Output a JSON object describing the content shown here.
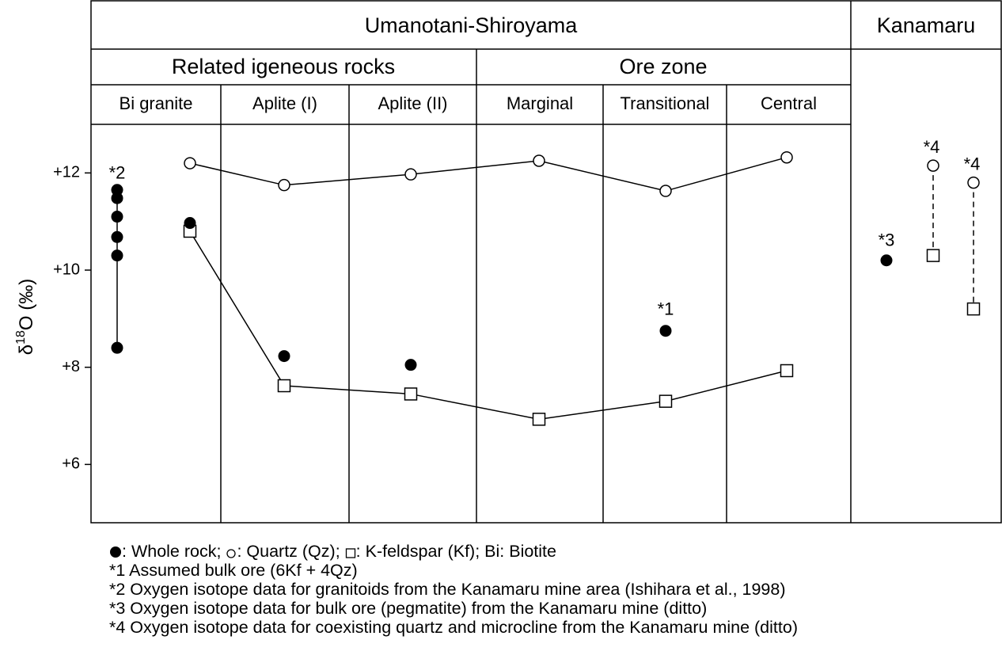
{
  "chart_data": {
    "type": "scatter",
    "ylabel": {
      "prefix": "δ",
      "superscript": "18",
      "suffix": "O (‰)"
    },
    "header": {
      "top": [
        "Umanotani-Shiroyama",
        "Kanamaru"
      ],
      "groups": [
        "Related igeneous rocks",
        "Ore zone"
      ]
    },
    "categories": [
      "Bi granite",
      "Aplite (I)",
      "Aplite (II)",
      "Marginal",
      "Transitional",
      "Central"
    ],
    "ylim": [
      4.8,
      13.0
    ],
    "yticks": [
      {
        "value": 6,
        "label": "+6"
      },
      {
        "value": 8,
        "label": "+8"
      },
      {
        "value": 10,
        "label": "+10"
      },
      {
        "value": 12,
        "label": "+12"
      }
    ],
    "series": [
      {
        "name": "Quartz (Qz)",
        "marker": "open-circle",
        "values": [
          12.2,
          11.75,
          11.97,
          12.25,
          11.63,
          12.32
        ]
      },
      {
        "name": "K-feldspar (Kf)",
        "marker": "open-square",
        "values": [
          10.8,
          7.62,
          7.45,
          6.93,
          7.3,
          7.93
        ]
      },
      {
        "name": "Whole rock",
        "marker": "filled-circle",
        "values": [
          10.97,
          8.23,
          8.05,
          null,
          8.75,
          null
        ]
      }
    ],
    "bi_granite_samples": {
      "values": [
        11.65,
        11.48,
        11.1,
        10.68,
        10.3,
        8.4
      ],
      "note": "*2"
    },
    "whole_rock_note": "*1",
    "kanamaru": {
      "whole_rock": {
        "value": 10.2,
        "note": "*3"
      },
      "pairs": [
        {
          "quartz": 12.15,
          "kfeldspar": 10.3,
          "note": "*4"
        },
        {
          "quartz": 11.8,
          "kfeldspar": 9.2,
          "note": "*4"
        }
      ]
    },
    "legend_extra": "Bi: Biotite",
    "notes": [
      "*1 Assumed bulk ore (6Kf + 4Qz)",
      "*2 Oxygen isotope data for granitoids from the Kanamaru mine area (Ishihara et al., 1998)",
      "*3 Oxygen isotope data for bulk ore (pegmatite) from the Kanamaru mine (ditto)",
      "*4 Oxygen isotope data for coexisting quartz and microcline from the Kanamaru mine (ditto)"
    ]
  }
}
